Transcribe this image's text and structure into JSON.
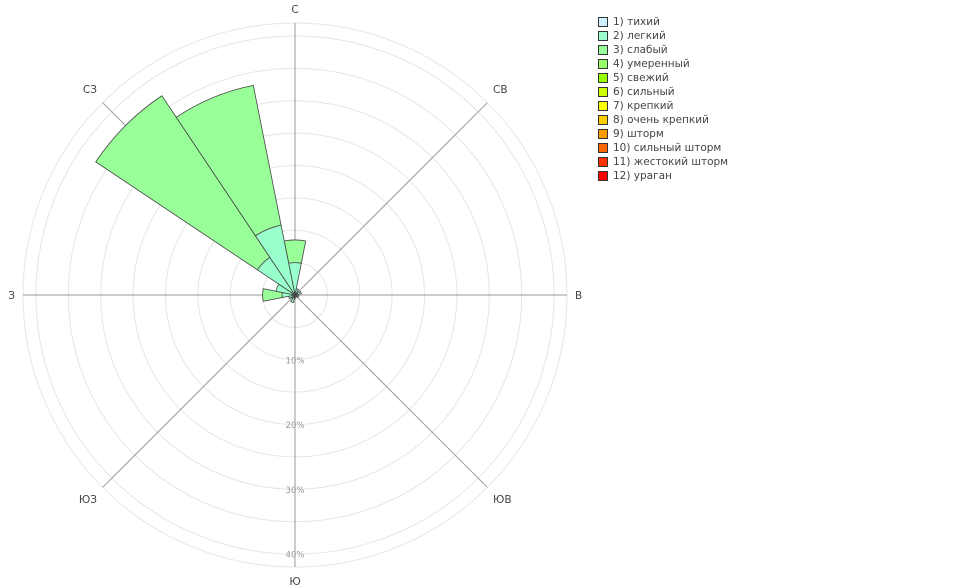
{
  "chart_data": {
    "type": "wind-rose",
    "directions": [
      "С",
      "СВ",
      "В",
      "ЮВ",
      "Ю",
      "ЮЗ",
      "З",
      "СЗ"
    ],
    "radial_ticks": [
      "10%",
      "20%",
      "30%",
      "40%"
    ],
    "rmax": 42,
    "grid": true,
    "legend_position": "top-right",
    "colors": {
      "1) тихий": "#ccf2ff",
      "2) легкий": "#99ffcc",
      "3) слабый": "#99ff99",
      "4) умеренный": "#99ff66",
      "5) свежий": "#99ff00",
      "6) сильный": "#ccff00",
      "7) крепкий": "#ffff00",
      "8) очень крепкий": "#ffcc00",
      "9) шторм": "#ff9900",
      "10) сильный шторм": "#ff6600",
      "11) жестокий шторм": "#ff3300",
      "12) ураган": "#ff0000"
    },
    "sectors": [
      {
        "angle": 0,
        "segments": [
          {
            "class": "2) легкий",
            "r0": 0,
            "r1": 5
          },
          {
            "class": "3) слабый",
            "r0": 5,
            "r1": 8.5
          }
        ]
      },
      {
        "angle": 22.5,
        "segments": [
          {
            "class": "2) легкий",
            "r0": 0,
            "r1": 1
          }
        ]
      },
      {
        "angle": 67.5,
        "segments": [
          {
            "class": "2) легкий",
            "r0": 0,
            "r1": 1
          }
        ]
      },
      {
        "angle": 112.5,
        "segments": [
          {
            "class": "2) легкий",
            "r0": 0,
            "r1": 0.6
          }
        ]
      },
      {
        "angle": 135,
        "segments": [
          {
            "class": "2) легкий",
            "r0": 0,
            "r1": 0.4
          }
        ]
      },
      {
        "angle": 180,
        "segments": [
          {
            "class": "2) легкий",
            "r0": 0,
            "r1": 0.5
          }
        ]
      },
      {
        "angle": 202.5,
        "segments": [
          {
            "class": "2) легкий",
            "r0": 0,
            "r1": 1.2
          }
        ]
      },
      {
        "angle": 225,
        "segments": [
          {
            "class": "2) легкий",
            "r0": 0,
            "r1": 0.6
          }
        ]
      },
      {
        "angle": 247.5,
        "segments": [
          {
            "class": "2) легкий",
            "r0": 0,
            "r1": 1
          }
        ]
      },
      {
        "angle": 270,
        "segments": [
          {
            "class": "2) легкий",
            "r0": 0,
            "r1": 2
          },
          {
            "class": "3) слабый",
            "r0": 2,
            "r1": 5
          }
        ]
      },
      {
        "angle": 292.5,
        "segments": [
          {
            "class": "2) легкий",
            "r0": 0,
            "r1": 3
          }
        ]
      },
      {
        "angle": 315,
        "segments": [
          {
            "class": "2) легкий",
            "r0": 0,
            "r1": 7
          },
          {
            "class": "3) слабый",
            "r0": 7,
            "r1": 37
          }
        ]
      },
      {
        "angle": 337.5,
        "segments": [
          {
            "class": "2) легкий",
            "r0": 0,
            "r1": 11
          },
          {
            "class": "3) слабый",
            "r0": 11,
            "r1": 33
          }
        ]
      }
    ]
  },
  "legend": [
    {
      "label": "1) тихий",
      "color": "#ccf2ff"
    },
    {
      "label": "2) легкий",
      "color": "#99ffcc"
    },
    {
      "label": "3) слабый",
      "color": "#99ff99"
    },
    {
      "label": "4) умеренный",
      "color": "#99ff66"
    },
    {
      "label": "5) свежий",
      "color": "#99ff00"
    },
    {
      "label": "6) сильный",
      "color": "#ccff00"
    },
    {
      "label": "7) крепкий",
      "color": "#ffff00"
    },
    {
      "label": "8) очень крепкий",
      "color": "#ffcc00"
    },
    {
      "label": "9) шторм",
      "color": "#ff9900"
    },
    {
      "label": "10) сильный шторм",
      "color": "#ff6600"
    },
    {
      "label": "11) жестокий шторм",
      "color": "#ff3300"
    },
    {
      "label": "12) ураган",
      "color": "#ff0000"
    }
  ]
}
